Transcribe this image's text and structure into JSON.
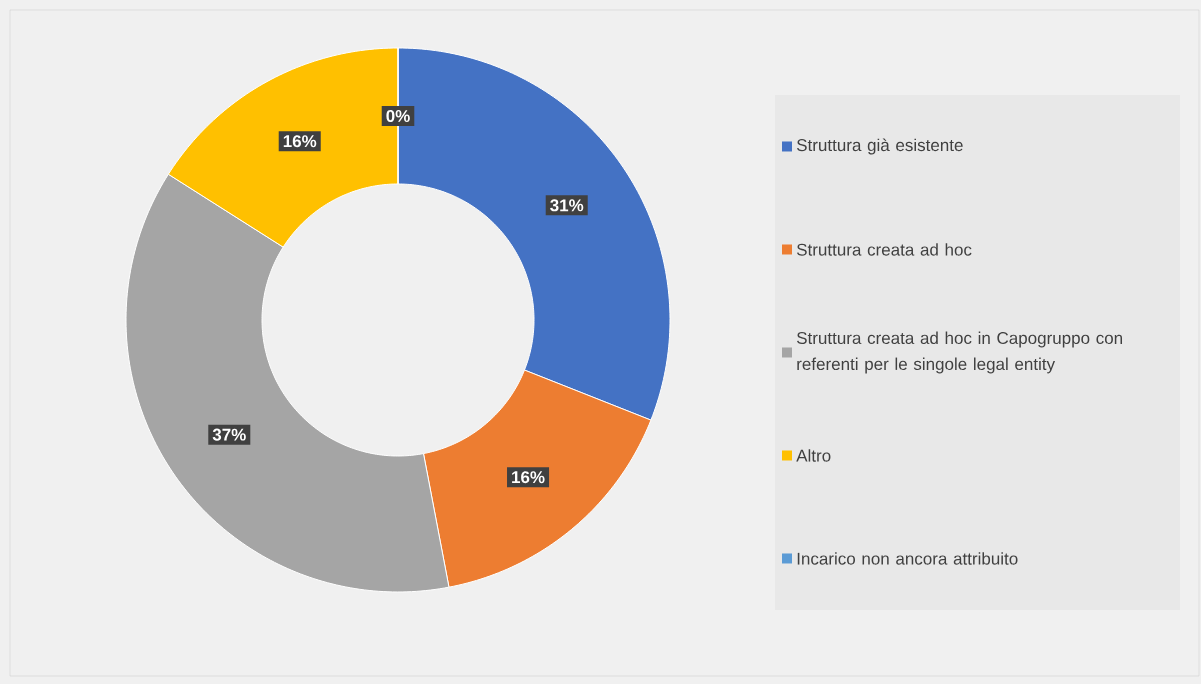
{
  "chart_data": {
    "type": "donut",
    "categories": [
      "Struttura già esistente",
      "Struttura creata ad hoc",
      "Struttura creata ad hoc in Capogruppo con referenti per le singole legal entity",
      "Altro",
      "Incarico non ancora attribuito"
    ],
    "values": [
      31,
      16,
      37,
      16,
      0
    ],
    "colors": [
      "#4472c4",
      "#ed7d31",
      "#a5a5a5",
      "#ffc000",
      "#5b9bd5"
    ],
    "value_labels": [
      "31%",
      "16%",
      "37%",
      "16%",
      "0%"
    ],
    "legend": "right"
  }
}
